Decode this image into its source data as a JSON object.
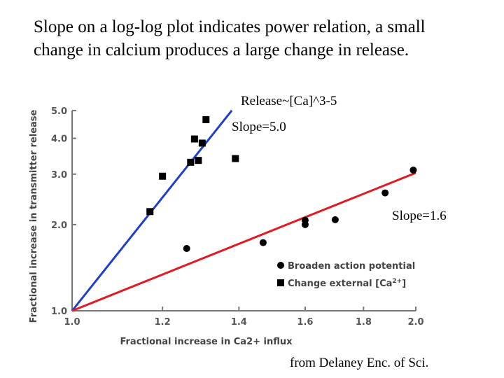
{
  "caption": {
    "line1": "Slope on a log-log plot indicates power relation, a small",
    "line2": "change in calcium produces a large change in release."
  },
  "annotations": {
    "release": "Release~[Ca]^3-5",
    "slope_blue": "Slope=5.0",
    "slope_red": "Slope=1.6",
    "source": "from Delaney Enc. of Sci."
  },
  "chart_data": {
    "type": "scatter",
    "xscale": "log",
    "yscale": "log",
    "xlim": [
      1.0,
      2.0
    ],
    "ylim": [
      1.0,
      5.0
    ],
    "xlabel": "Fractional increase in Ca2+ influx",
    "ylabel": "Fractional increase in transmitter release",
    "xticks": [
      1.0,
      1.2,
      1.4,
      1.6,
      1.8,
      2.0
    ],
    "xtick_labels": [
      "1.0",
      "1.2",
      "1.4",
      "1.6",
      "1.8",
      "2.0"
    ],
    "yticks": [
      1.0,
      2.0,
      3.0,
      4.0,
      5.0
    ],
    "ytick_labels": [
      "1.0",
      "2.0",
      "3.0",
      "4.0",
      "5.0"
    ],
    "series": [
      {
        "name": "Broaden action potential",
        "marker": "circle",
        "color": "#000000",
        "points": [
          [
            1.26,
            1.65
          ],
          [
            1.47,
            1.73
          ],
          [
            1.6,
            2.0
          ],
          [
            1.6,
            2.07
          ],
          [
            1.7,
            2.08
          ],
          [
            1.88,
            2.58
          ],
          [
            1.99,
            3.1
          ]
        ]
      },
      {
        "name": "Change external [Ca2+]",
        "marker": "square",
        "color": "#000000",
        "points": [
          [
            1.17,
            2.22
          ],
          [
            1.2,
            2.95
          ],
          [
            1.27,
            3.3
          ],
          [
            1.28,
            3.98
          ],
          [
            1.29,
            3.35
          ],
          [
            1.3,
            3.85
          ],
          [
            1.31,
            4.65
          ],
          [
            1.39,
            3.4
          ]
        ]
      }
    ],
    "fit_lines": [
      {
        "name": "Slope=5.0",
        "color": "#1f3fc8",
        "slope": 5.0,
        "x_range": [
          1.0,
          1.38
        ]
      },
      {
        "name": "Slope=1.6",
        "color": "#e01b24",
        "slope": 1.6,
        "x_range": [
          1.0,
          2.0
        ]
      }
    ],
    "legend": {
      "position": "bottom-right",
      "entries": [
        "Broaden action potential",
        "Change external [Ca2+]"
      ]
    }
  }
}
